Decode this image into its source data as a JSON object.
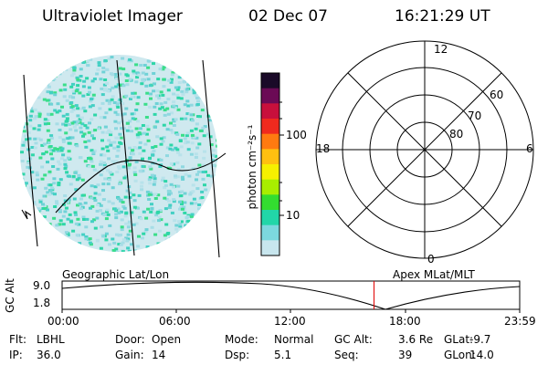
{
  "header": {
    "instrument": "Ultraviolet Imager",
    "date": "02 Dec 07",
    "time": "16:21:29 UT"
  },
  "colorbar": {
    "label": "photon cm⁻²s⁻¹",
    "ticks": [
      "100",
      "10"
    ],
    "colors": [
      "#1a0a28",
      "#6b0a55",
      "#c8103c",
      "#ef2a1e",
      "#ff7a10",
      "#ffc010",
      "#f6f000",
      "#a8ee00",
      "#33dd30",
      "#22d6a8",
      "#7cd8de",
      "#c8e6ee"
    ]
  },
  "polar_plot": {
    "clock_labels": [
      "12",
      "18",
      "6",
      "0"
    ],
    "lat_labels": [
      "60",
      "70",
      "80"
    ]
  },
  "timeline": {
    "left_caption": "Geographic Lat/Lon",
    "right_caption": "Apex MLat/MLT",
    "axis_title": "GC Alt",
    "y_labels": [
      "9.0",
      "1.8"
    ],
    "x_labels": [
      "00:00",
      "06:00",
      "12:00",
      "18:00",
      "23:59"
    ],
    "marker_time": "16:21",
    "marker_color": "#e00000"
  },
  "status": {
    "rows": [
      [
        {
          "label": "Flt:",
          "value": "LBHL"
        },
        {
          "label": "Door:",
          "value": "Open"
        },
        {
          "label": "Mode:",
          "value": "Normal"
        },
        {
          "label": "GC Alt:",
          "value": "3.6 Re"
        },
        {
          "label": "GLat:",
          "value": "-9.7"
        }
      ],
      [
        {
          "label": "IP:",
          "value": "36.0"
        },
        {
          "label": "Gain:",
          "value": "14"
        },
        {
          "label": "Dsp:",
          "value": "5.1"
        },
        {
          "label": "Seq:",
          "value": "39"
        },
        {
          "label": "GLon:",
          "value": "14.0"
        }
      ]
    ]
  }
}
